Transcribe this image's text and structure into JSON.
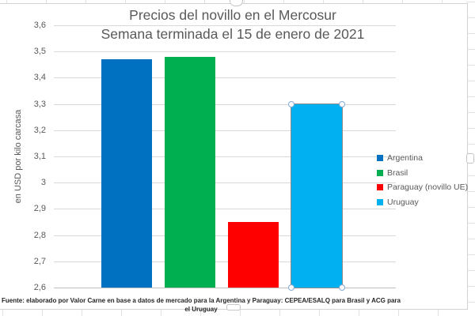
{
  "chart_data": {
    "type": "bar",
    "title": "Precios del novillo en el Mercosur",
    "subtitle": "Semana terminada el 15 de enero de 2021",
    "ylabel": "en USD por kilo carcasa",
    "xlabel": "",
    "categories": [
      "Argentina",
      "Brasil",
      "Paraguay (novillo UE)",
      "Uruguay"
    ],
    "values": [
      3.47,
      3.48,
      2.85,
      3.3
    ],
    "bar_colors": [
      "#0070C0",
      "#00B050",
      "#FF0000",
      "#00B0F0"
    ],
    "ylim": [
      2.6,
      3.6
    ],
    "ytick_labels": [
      "3,6",
      "3,5",
      "3,4",
      "3,3",
      "3,2",
      "3,1",
      "3",
      "2,9",
      "2,8",
      "2,7",
      "2,6"
    ],
    "grid": true,
    "legend_position": "right",
    "legend_entries": [
      "Argentina",
      "Brasil",
      "Paraguay (novillo UE)",
      "Uruguay"
    ],
    "selected_point": "Uruguay",
    "source_note": "Fuente: elaborado por Valor Carne en base a datos de mercado para la Argentina y Paraguay: CEPEA/ESALQ para Brasil y ACG para el Uruguay",
    "text_color": "#595959",
    "gridline_color": "#D9D9D9"
  }
}
